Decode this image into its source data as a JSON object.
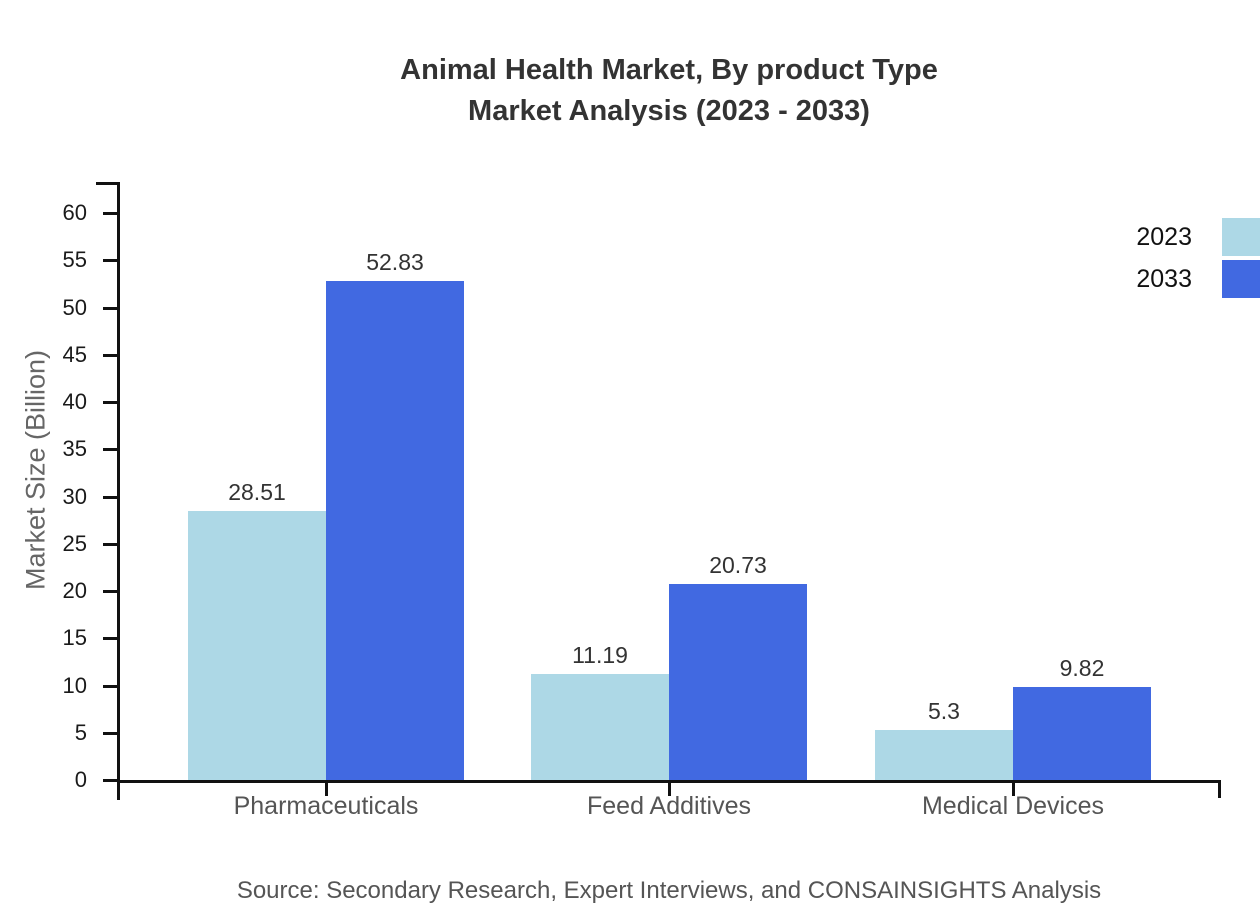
{
  "title": {
    "line1": "Animal Health Market, By product Type",
    "line2": "Market Analysis (2023 - 2033)"
  },
  "axis": {
    "y_label": "Market Size (Billion)"
  },
  "source_note": "Source: Secondary Research, Expert Interviews, and CONSAINSIGHTS Analysis",
  "chart_data": {
    "type": "bar",
    "title": "Animal Health Market, By product Type Market Analysis (2023 - 2033)",
    "categories": [
      "Pharmaceuticals",
      "Feed Additives",
      "Medical Devices"
    ],
    "series": [
      {
        "name": "2023",
        "color": "#ADD8E6",
        "values": [
          28.51,
          11.19,
          5.3
        ]
      },
      {
        "name": "2033",
        "color": "#4169E1",
        "values": [
          52.83,
          20.73,
          9.82
        ]
      }
    ],
    "xlabel": "",
    "ylabel": "Market Size (Billion)",
    "ylim": [
      0,
      60
    ],
    "yticks": [
      0,
      5,
      10,
      15,
      20,
      25,
      30,
      35,
      40,
      45,
      50,
      55,
      60
    ],
    "grid": false,
    "value_labels": true,
    "legend_position": "top-right"
  }
}
